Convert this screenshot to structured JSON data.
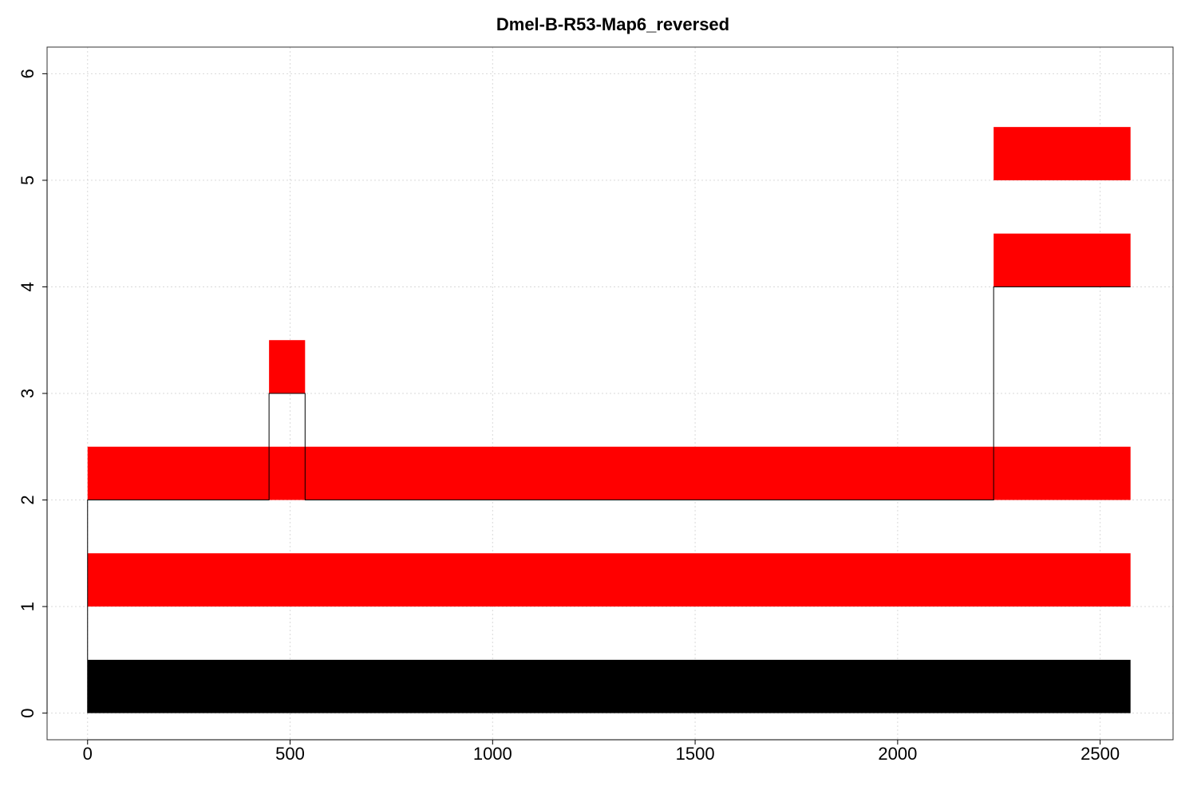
{
  "chart_data": {
    "type": "bar",
    "title": "Dmel-B-R53-Map6_reversed",
    "xlabel": "",
    "ylabel": "",
    "xlim": [
      -100,
      2680
    ],
    "ylim": [
      -0.25,
      6.25
    ],
    "x_ticks": [
      0,
      500,
      1000,
      1500,
      2000,
      2500
    ],
    "y_ticks": [
      0,
      1,
      2,
      3,
      4,
      5,
      6
    ],
    "grid": true,
    "segments": [
      {
        "x0": 0,
        "x1": 2575,
        "y0": 0,
        "y1": 0.5,
        "color": "#000000"
      },
      {
        "x0": 0,
        "x1": 2575,
        "y0": 1,
        "y1": 1.5,
        "color": "#ff0000"
      },
      {
        "x0": 0,
        "x1": 2575,
        "y0": 2,
        "y1": 2.5,
        "color": "#ff0000"
      },
      {
        "x0": 448,
        "x1": 537,
        "y0": 3,
        "y1": 3.5,
        "color": "#ff0000"
      },
      {
        "x0": 2237,
        "x1": 2575,
        "y0": 4,
        "y1": 4.5,
        "color": "#ff0000"
      },
      {
        "x0": 2237,
        "x1": 2575,
        "y0": 5,
        "y1": 5.5,
        "color": "#ff0000"
      }
    ],
    "coverage_step": [
      [
        0,
        0
      ],
      [
        0,
        2
      ],
      [
        448,
        2
      ],
      [
        448,
        3
      ],
      [
        537,
        3
      ],
      [
        537,
        2
      ],
      [
        2237,
        2
      ],
      [
        2237,
        4
      ],
      [
        2575,
        4
      ]
    ]
  }
}
